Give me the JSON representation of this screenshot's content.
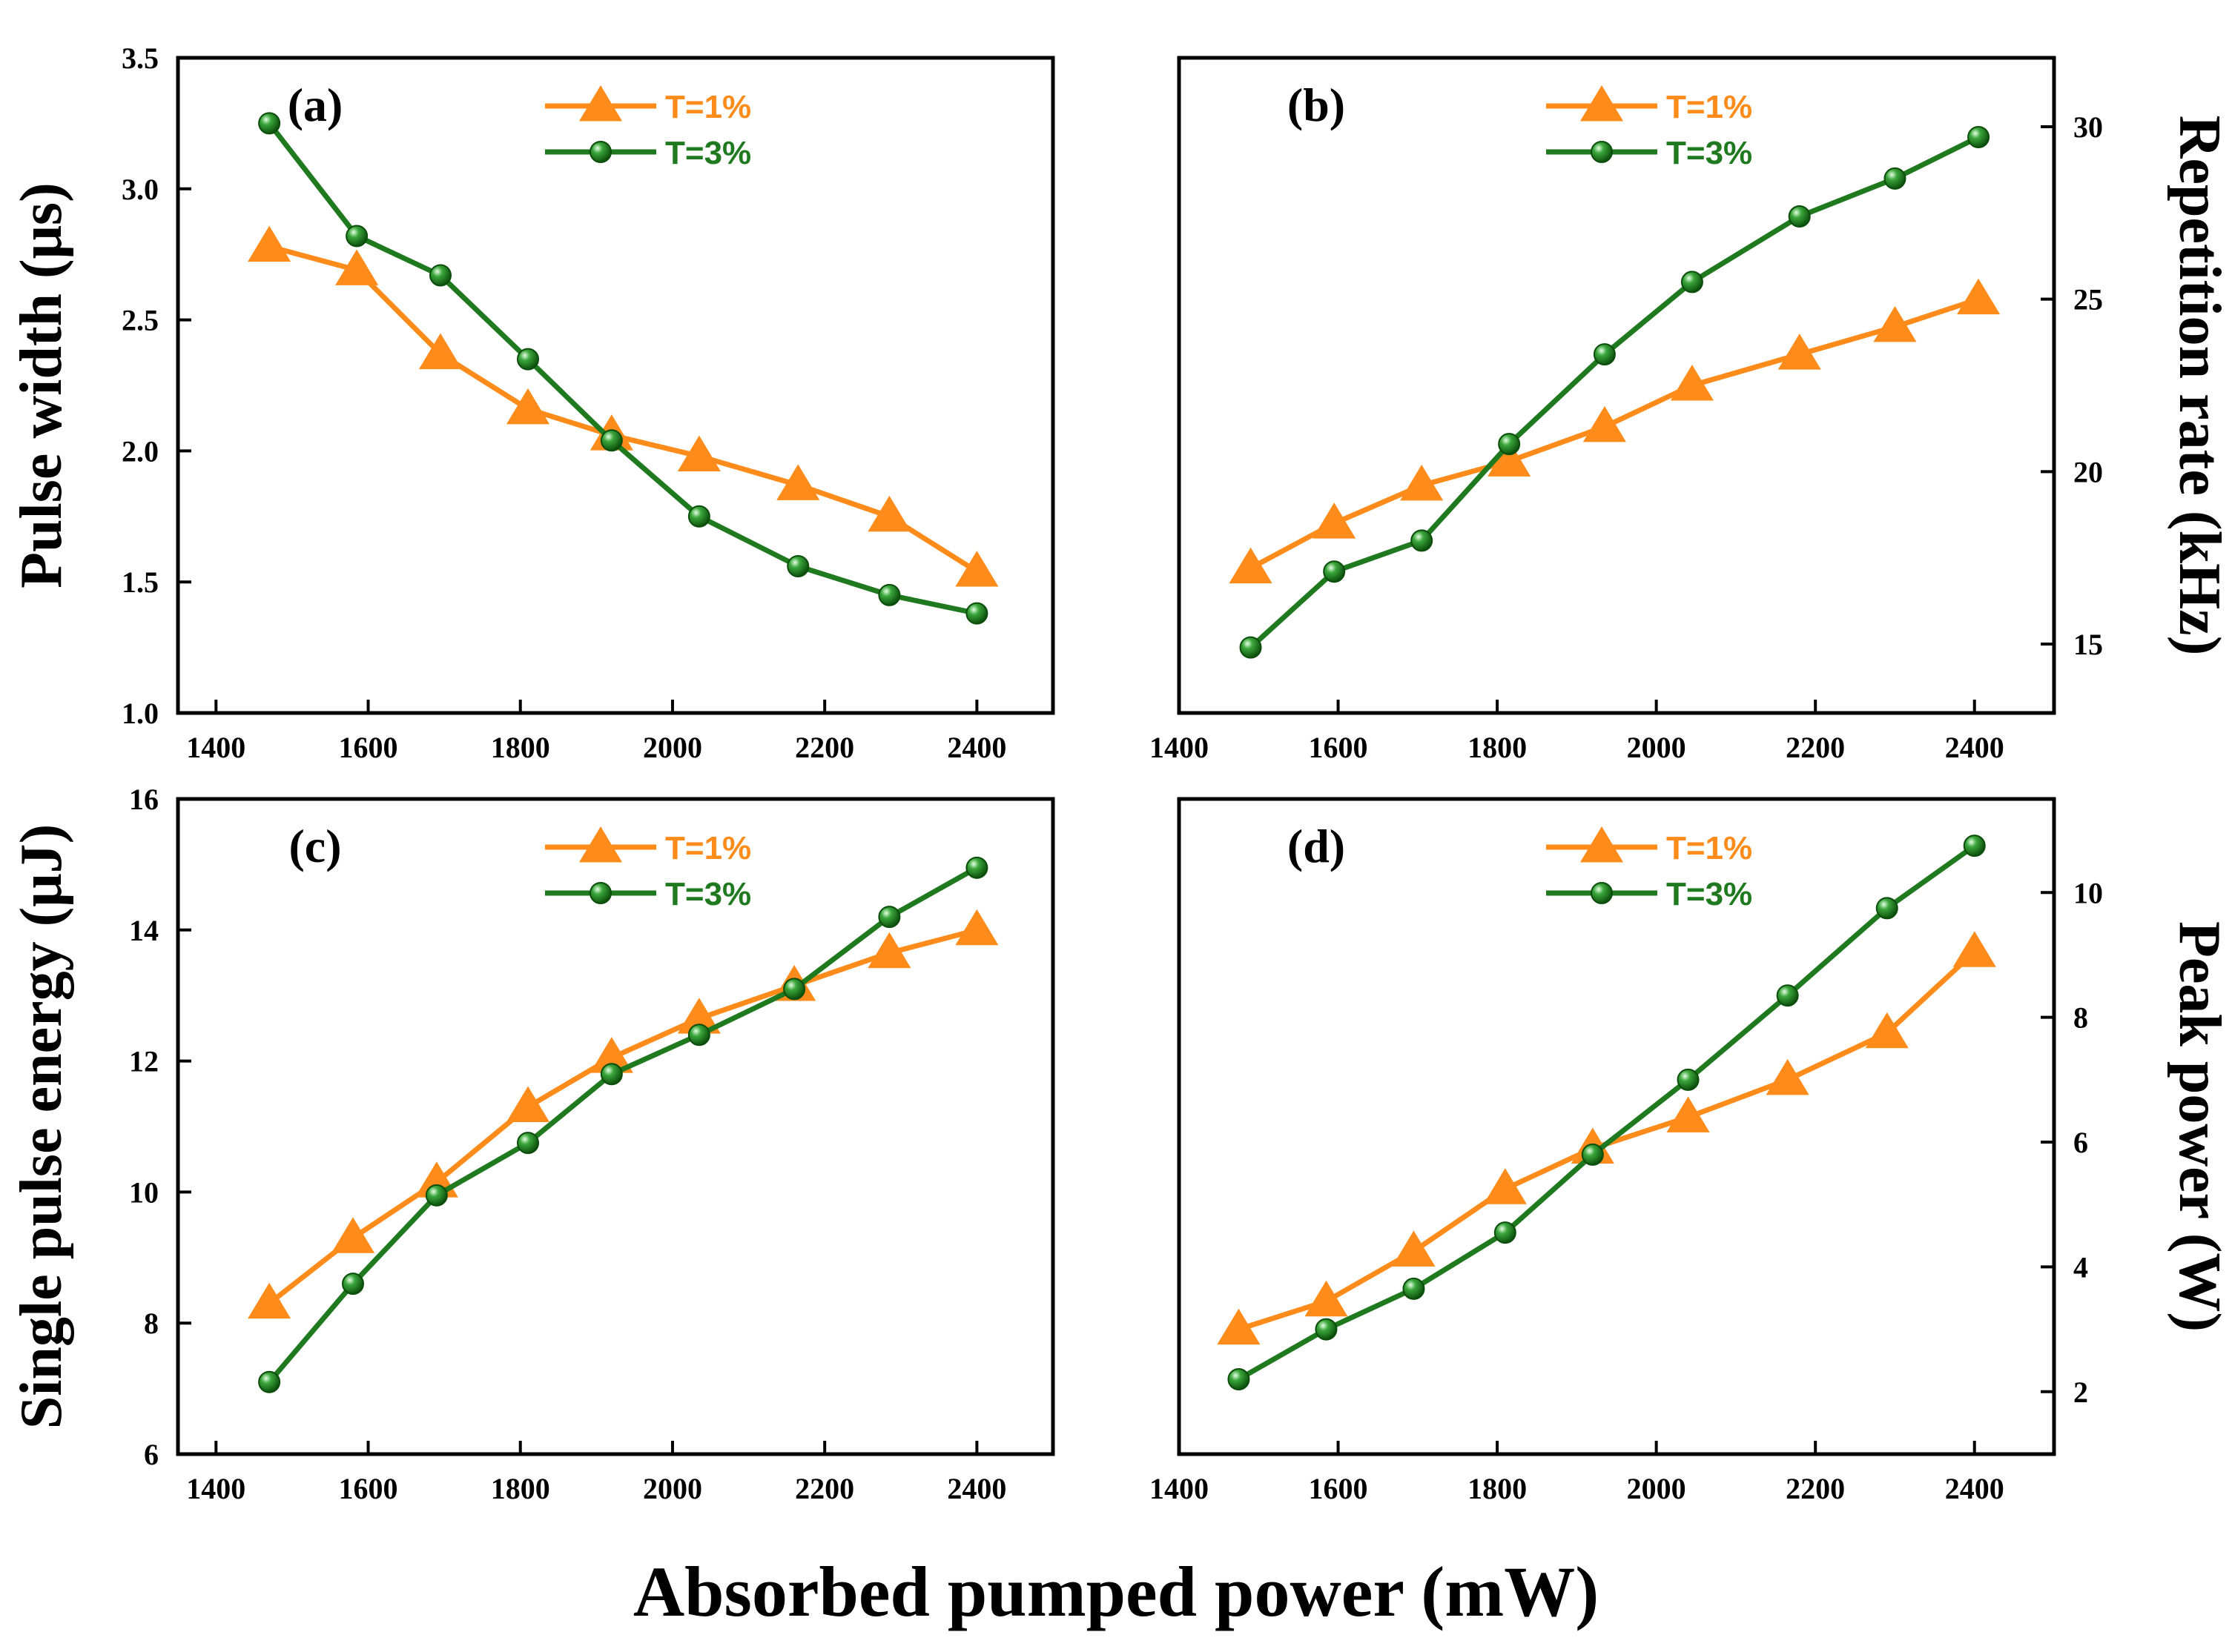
{
  "figure": {
    "common_xlabel": "Absorbed pumped power (mW)",
    "colors": {
      "t1": "#FF8C1A",
      "t3": "#1F7A1F",
      "axis": "#000000"
    }
  },
  "chart_data": [
    {
      "id": "a",
      "type": "line",
      "panel_label": "(a)",
      "ylabel": "Pulse width (μs)",
      "ylabel_side": "left",
      "xlim": [
        1350,
        2500
      ],
      "ylim": [
        1.0,
        3.5
      ],
      "xticks": [
        1400,
        1600,
        1800,
        2000,
        2200,
        2400
      ],
      "yticks": [
        1.0,
        1.5,
        2.0,
        2.5,
        3.0,
        3.5
      ],
      "ytick_labels": [
        "1.0",
        "1.5",
        "2.0",
        "2.5",
        "3.0",
        "3.5"
      ],
      "legend_position": "top-center",
      "series": [
        {
          "name": "T=1%",
          "marker": "triangle",
          "x": [
            1470,
            1585,
            1695,
            1810,
            1920,
            2035,
            2165,
            2285,
            2400
          ],
          "y": [
            2.78,
            2.69,
            2.37,
            2.16,
            2.06,
            1.98,
            1.87,
            1.75,
            1.54
          ]
        },
        {
          "name": "T=3%",
          "marker": "sphere",
          "x": [
            1470,
            1585,
            1695,
            1810,
            1920,
            2035,
            2165,
            2285,
            2400
          ],
          "y": [
            3.25,
            2.82,
            2.67,
            2.35,
            2.04,
            1.75,
            1.56,
            1.45,
            1.38
          ]
        }
      ]
    },
    {
      "id": "b",
      "type": "line",
      "panel_label": "(b)",
      "ylabel": "Repetition rate (kHz)",
      "ylabel_side": "right",
      "xlim": [
        1400,
        2500
      ],
      "ylim": [
        13,
        32
      ],
      "xticks": [
        1400,
        1600,
        1800,
        2000,
        2200,
        2400
      ],
      "yticks": [
        15,
        20,
        25,
        30
      ],
      "ytick_labels": [
        "15",
        "20",
        "25",
        "30"
      ],
      "legend_position": "top-center",
      "series": [
        {
          "name": "T=1%",
          "marker": "triangle",
          "x": [
            1490,
            1595,
            1705,
            1815,
            1935,
            2045,
            2180,
            2300,
            2405
          ],
          "y": [
            17.2,
            18.5,
            19.6,
            20.3,
            21.3,
            22.5,
            23.4,
            24.2,
            25.0
          ]
        },
        {
          "name": "T=3%",
          "marker": "sphere",
          "x": [
            1490,
            1595,
            1705,
            1815,
            1935,
            2045,
            2180,
            2300,
            2405
          ],
          "y": [
            14.9,
            17.1,
            18.0,
            20.8,
            23.4,
            25.5,
            27.4,
            28.5,
            29.7
          ]
        }
      ]
    },
    {
      "id": "c",
      "type": "line",
      "panel_label": "(c)",
      "ylabel": "Single pulse energy (μJ)",
      "ylabel_side": "left",
      "xlim": [
        1350,
        2500
      ],
      "ylim": [
        6,
        16
      ],
      "xticks": [
        1400,
        1600,
        1800,
        2000,
        2200,
        2400
      ],
      "yticks": [
        6,
        8,
        10,
        12,
        14,
        16
      ],
      "ytick_labels": [
        "6",
        "8",
        "10",
        "12",
        "14",
        "16"
      ],
      "legend_position": "top-center",
      "series": [
        {
          "name": "T=1%",
          "marker": "triangle",
          "x": [
            1470,
            1580,
            1690,
            1810,
            1920,
            2035,
            2160,
            2285,
            2400
          ],
          "y": [
            8.3,
            9.3,
            10.15,
            11.3,
            12.05,
            12.65,
            13.15,
            13.65,
            14.0
          ]
        },
        {
          "name": "T=3%",
          "marker": "sphere",
          "x": [
            1470,
            1580,
            1690,
            1810,
            1920,
            2035,
            2160,
            2285,
            2400
          ],
          "y": [
            7.1,
            8.6,
            9.95,
            10.75,
            11.8,
            12.4,
            13.1,
            14.2,
            14.95
          ]
        }
      ]
    },
    {
      "id": "d",
      "type": "line",
      "panel_label": "(d)",
      "ylabel": "Peak power (W)",
      "ylabel_side": "right",
      "xlim": [
        1400,
        2500
      ],
      "ylim": [
        1,
        11.5
      ],
      "xticks": [
        1400,
        1600,
        1800,
        2000,
        2200,
        2400
      ],
      "yticks": [
        2,
        4,
        6,
        8,
        10
      ],
      "ytick_labels": [
        "2",
        "4",
        "6",
        "8",
        "10"
      ],
      "legend_position": "top-center",
      "series": [
        {
          "name": "T=1%",
          "marker": "triangle",
          "x": [
            1475,
            1585,
            1695,
            1810,
            1920,
            2040,
            2165,
            2290,
            2400
          ],
          "y": [
            3.0,
            3.45,
            4.25,
            5.25,
            5.9,
            6.4,
            7.0,
            7.75,
            9.05
          ]
        },
        {
          "name": "T=3%",
          "marker": "sphere",
          "x": [
            1475,
            1585,
            1695,
            1810,
            1920,
            2040,
            2165,
            2290,
            2400
          ],
          "y": [
            2.2,
            3.0,
            3.65,
            4.55,
            5.8,
            7.0,
            8.35,
            9.75,
            10.75
          ]
        }
      ]
    }
  ]
}
